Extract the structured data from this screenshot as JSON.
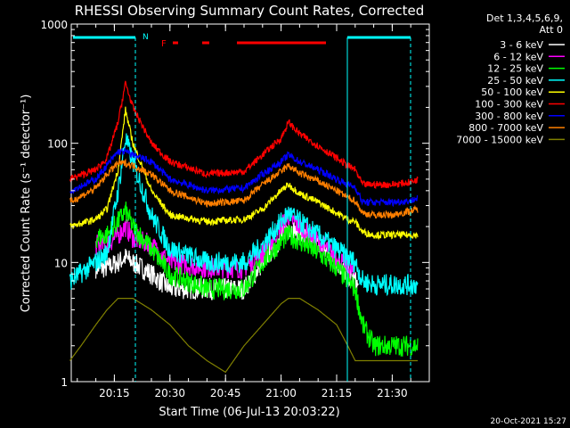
{
  "chart_data": {
    "type": "line",
    "title": "RHESSI Observing Summary Count Rates, Corrected",
    "ylabel": "Corrected Count Rate (s⁻¹ detector⁻¹)",
    "xlabel": "Start Time (06-Jul-13 20:03:22)",
    "footer": "20-Oct-2021 15:27",
    "y_scale": "log",
    "ylim": [
      1,
      1000
    ],
    "xlim": [
      "20:03:22",
      "21:40:00"
    ],
    "x_ticks": [
      "20:15",
      "20:30",
      "20:45",
      "21:00",
      "21:15",
      "21:30"
    ],
    "y_ticks": [
      "1",
      "10",
      "100",
      "1000"
    ],
    "legend": {
      "header": [
        "Det 1,3,4,5,6,9,",
        "Att 0"
      ],
      "placement": "right"
    },
    "flags": {
      "N_label": "N",
      "F_label": "F"
    },
    "series": [
      {
        "name": "3 - 6 keV",
        "color": "#ffffff",
        "x": [
          "20:03",
          "20:10",
          "20:13",
          "20:16",
          "20:18",
          "20:20",
          "20:25",
          "20:30",
          "20:40",
          "20:50",
          "20:55",
          "21:00",
          "21:02",
          "21:05",
          "21:10",
          "21:15",
          "21:18",
          "21:20",
          "21:21"
        ],
        "values": [
          null,
          9,
          9,
          10,
          11,
          10,
          8,
          6,
          6,
          6,
          10,
          16,
          20,
          17,
          14,
          10,
          8,
          7,
          6
        ]
      },
      {
        "name": "6 - 12 keV",
        "color": "#ff00ff",
        "x": [
          "20:10",
          "20:13",
          "20:16",
          "20:18",
          "20:20",
          "20:25",
          "20:30",
          "20:40",
          "20:50",
          "20:55",
          "21:00",
          "21:02",
          "21:05",
          "21:10",
          "21:15",
          "21:18",
          "21:20"
        ],
        "values": [
          14,
          14,
          17,
          20,
          16,
          14,
          10,
          9,
          9,
          12,
          20,
          24,
          20,
          15,
          11,
          9,
          8
        ]
      },
      {
        "name": "12 - 25 keV",
        "color": "#00ff00",
        "x": [
          "20:10",
          "20:13",
          "20:16",
          "20:18",
          "20:20",
          "20:25",
          "20:30",
          "20:40",
          "20:50",
          "20:55",
          "21:00",
          "21:02",
          "21:05",
          "21:10",
          "21:15",
          "21:18",
          "21:20",
          "21:22",
          "21:25",
          "21:30",
          "21:35",
          "21:37"
        ],
        "values": [
          16,
          17,
          22,
          27,
          20,
          13,
          8,
          6,
          6,
          10,
          15,
          17,
          15,
          12,
          9,
          7,
          6,
          3,
          2,
          2,
          2,
          2
        ]
      },
      {
        "name": "25 - 50 keV",
        "color": "#00ffff",
        "x": [
          "20:03",
          "20:10",
          "20:13",
          "20:16",
          "20:18",
          "20:20",
          "20:25",
          "20:30",
          "20:40",
          "20:50",
          "20:55",
          "21:00",
          "21:02",
          "21:05",
          "21:10",
          "21:15",
          "21:18",
          "21:20",
          "21:22",
          "21:25",
          "21:30",
          "21:35",
          "21:37"
        ],
        "values": [
          7,
          10,
          12,
          40,
          110,
          70,
          25,
          13,
          10,
          10,
          14,
          22,
          26,
          22,
          17,
          13,
          11,
          10,
          7,
          6.5,
          6.5,
          6.5,
          6.5
        ]
      },
      {
        "name": "50 - 100 keV",
        "color": "#ffff00",
        "x": [
          "20:03",
          "20:10",
          "20:13",
          "20:16",
          "20:18",
          "20:20",
          "20:25",
          "20:30",
          "20:40",
          "20:50",
          "20:55",
          "21:00",
          "21:02",
          "21:05",
          "21:10",
          "21:15",
          "21:18",
          "21:20",
          "21:22",
          "21:25",
          "21:30",
          "21:35",
          "21:37"
        ],
        "values": [
          20,
          23,
          28,
          60,
          190,
          100,
          40,
          25,
          22,
          23,
          28,
          40,
          45,
          38,
          32,
          26,
          23,
          22,
          18,
          17,
          17,
          17,
          17
        ]
      },
      {
        "name": "100 - 300 keV",
        "color": "#ff0000",
        "x": [
          "20:03",
          "20:10",
          "20:13",
          "20:16",
          "20:18",
          "20:20",
          "20:25",
          "20:30",
          "20:40",
          "20:50",
          "20:55",
          "21:00",
          "21:02",
          "21:05",
          "21:10",
          "21:15",
          "21:18",
          "21:20",
          "21:22",
          "21:25",
          "21:30",
          "21:35",
          "21:37"
        ],
        "values": [
          50,
          60,
          75,
          150,
          320,
          200,
          100,
          70,
          55,
          58,
          80,
          110,
          150,
          120,
          95,
          75,
          65,
          60,
          45,
          45,
          45,
          47,
          50
        ]
      },
      {
        "name": "300 - 800 keV",
        "color": "#0000ff",
        "x": [
          "20:03",
          "20:10",
          "20:13",
          "20:16",
          "20:18",
          "20:20",
          "20:25",
          "20:30",
          "20:40",
          "20:50",
          "20:55",
          "21:00",
          "21:02",
          "21:05",
          "21:10",
          "21:15",
          "21:18",
          "21:20",
          "21:22",
          "21:25",
          "21:30",
          "21:35",
          "21:37"
        ],
        "values": [
          40,
          50,
          65,
          85,
          85,
          80,
          70,
          50,
          40,
          42,
          55,
          70,
          80,
          70,
          60,
          50,
          45,
          43,
          32,
          32,
          32,
          33,
          35
        ]
      },
      {
        "name": "800 - 7000 keV",
        "color": "#ff7f00",
        "x": [
          "20:03",
          "20:10",
          "20:13",
          "20:16",
          "20:18",
          "20:20",
          "20:25",
          "20:30",
          "20:40",
          "20:50",
          "20:55",
          "21:00",
          "21:02",
          "21:05",
          "21:10",
          "21:15",
          "21:18",
          "21:20",
          "21:22",
          "21:25",
          "21:30",
          "21:35",
          "21:37"
        ],
        "values": [
          32,
          42,
          55,
          68,
          68,
          65,
          55,
          40,
          31,
          33,
          45,
          58,
          65,
          56,
          48,
          40,
          35,
          33,
          26,
          25,
          25,
          27,
          28
        ]
      },
      {
        "name": "7000 - 15000 keV",
        "color": "#808000",
        "x": [
          "20:03",
          "20:06",
          "20:10",
          "20:13",
          "20:16",
          "20:20",
          "20:25",
          "20:30",
          "20:35",
          "20:40",
          "20:45",
          "20:50",
          "20:55",
          "21:00",
          "21:02",
          "21:05",
          "21:10",
          "21:15",
          "21:18",
          "21:20",
          "21:22",
          "21:25",
          "21:30",
          "21:35",
          "21:37"
        ],
        "values": [
          1.5,
          2,
          3,
          4,
          5,
          5,
          4,
          3,
          2,
          1.5,
          1.2,
          2,
          3,
          4.5,
          5,
          5,
          4,
          3,
          2,
          1.5,
          1.5,
          1.5,
          1.5,
          1.5,
          1.5
        ]
      }
    ]
  }
}
